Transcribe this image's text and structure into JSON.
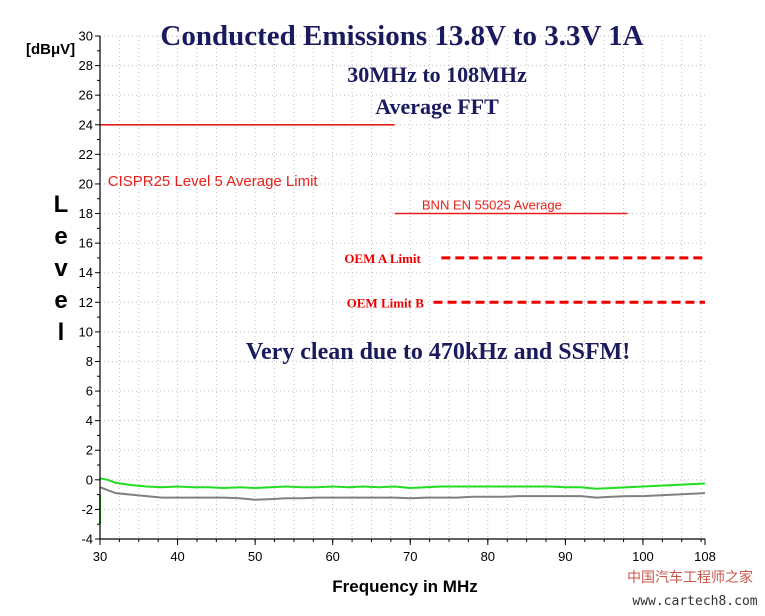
{
  "chart_data": {
    "type": "line",
    "title": "Conducted Emissions 13.8V to 3.3V 1A",
    "subtitle_lines": [
      "30MHz to 108MHz",
      "Average FFT"
    ],
    "ylabel_unit": "[dBμV]",
    "ylabel": "Level",
    "xlabel": "Frequency in MHz",
    "xlim": [
      30,
      108
    ],
    "ylim": [
      -4,
      30
    ],
    "x_ticks": [
      30,
      40,
      50,
      60,
      70,
      80,
      90,
      100,
      108
    ],
    "y_ticks": [
      -4,
      -2,
      0,
      2,
      4,
      6,
      8,
      10,
      12,
      14,
      16,
      18,
      20,
      22,
      24,
      26,
      28,
      30
    ],
    "grid": true,
    "series": [
      {
        "name": "CISPR25 Level 5 Average Limit",
        "color": "#e8201c",
        "style": "solid",
        "x": [
          30,
          68
        ],
        "y": [
          24,
          24
        ]
      },
      {
        "name": "BNN EN 55025 Average",
        "color": "#e8201c",
        "style": "solid",
        "x": [
          68,
          98
        ],
        "y": [
          18,
          18
        ]
      },
      {
        "name": "OEM A Limit",
        "color": "#ee0000",
        "style": "dashed",
        "x": [
          74,
          108
        ],
        "y": [
          15,
          15
        ]
      },
      {
        "name": "OEM Limit B",
        "color": "#ee0000",
        "style": "dashed",
        "x": [
          73,
          108
        ],
        "y": [
          12,
          12
        ]
      },
      {
        "name": "",
        "color": "#22dd22",
        "style": "solid",
        "x": [
          30,
          31,
          32,
          34,
          36,
          38,
          40,
          42,
          44,
          46,
          48,
          50,
          52,
          54,
          56,
          58,
          60,
          62,
          64,
          66,
          68,
          70,
          72,
          74,
          76,
          78,
          80,
          82,
          84,
          86,
          88,
          90,
          92,
          94,
          96,
          98,
          100,
          102,
          104,
          106,
          108
        ],
        "y": [
          0.1,
          0.0,
          -0.2,
          -0.35,
          -0.45,
          -0.5,
          -0.45,
          -0.5,
          -0.5,
          -0.55,
          -0.5,
          -0.55,
          -0.5,
          -0.45,
          -0.5,
          -0.5,
          -0.45,
          -0.5,
          -0.45,
          -0.5,
          -0.45,
          -0.55,
          -0.5,
          -0.45,
          -0.45,
          -0.45,
          -0.45,
          -0.45,
          -0.45,
          -0.45,
          -0.45,
          -0.5,
          -0.5,
          -0.6,
          -0.55,
          -0.5,
          -0.45,
          -0.4,
          -0.35,
          -0.3,
          -0.25
        ]
      },
      {
        "name": "",
        "color": "#808080",
        "style": "solid",
        "x": [
          30,
          31,
          32,
          34,
          36,
          38,
          40,
          42,
          44,
          46,
          48,
          50,
          52,
          54,
          56,
          58,
          60,
          62,
          64,
          66,
          68,
          70,
          72,
          74,
          76,
          78,
          80,
          82,
          84,
          86,
          88,
          90,
          92,
          94,
          96,
          98,
          100,
          102,
          104,
          106,
          108
        ],
        "y": [
          -0.5,
          -0.7,
          -0.9,
          -1.0,
          -1.1,
          -1.2,
          -1.2,
          -1.2,
          -1.2,
          -1.2,
          -1.25,
          -1.35,
          -1.3,
          -1.25,
          -1.25,
          -1.2,
          -1.2,
          -1.2,
          -1.2,
          -1.2,
          -1.2,
          -1.25,
          -1.2,
          -1.2,
          -1.2,
          -1.15,
          -1.15,
          -1.15,
          -1.1,
          -1.1,
          -1.1,
          -1.1,
          -1.1,
          -1.2,
          -1.15,
          -1.1,
          -1.1,
          -1.05,
          -1.0,
          -0.95,
          -0.9
        ]
      },
      {
        "name": "",
        "color": "#22dd22",
        "style": "solid",
        "x": [
          30,
          30
        ],
        "y": [
          -3.0,
          -1.0
        ]
      }
    ],
    "annotations": [
      {
        "text": "CISPR25 Level 5 Average Limit",
        "color": "#e8201c",
        "x": 31.0,
        "y": 20.2,
        "style": "sans",
        "size": "large"
      },
      {
        "text": "BNN EN 55025 Average",
        "color": "#e8201c",
        "x": 71.5,
        "y": 18.6,
        "style": "sans",
        "size": "small"
      },
      {
        "text": "OEM A Limit",
        "color": "#ee0000",
        "x": 61.5,
        "y": 15.0,
        "style": "serif",
        "size": "small"
      },
      {
        "text": "OEM Limit B",
        "color": "#ee0000",
        "x": 61.8,
        "y": 12.0,
        "style": "serif",
        "size": "small"
      },
      {
        "text": "Very clean due to 470kHz and SSFM!",
        "color": "#1a1a5e",
        "x": 48.8,
        "y": 8.5,
        "style": "serif",
        "size": "xlarge"
      }
    ]
  },
  "watermark": {
    "text_line1": "中国汽车工程师之家",
    "text_line2": "www.cartech8.com"
  },
  "colors": {
    "title": "#1a1a5e",
    "axis": "#000000",
    "grid": "#bdbdbd"
  }
}
